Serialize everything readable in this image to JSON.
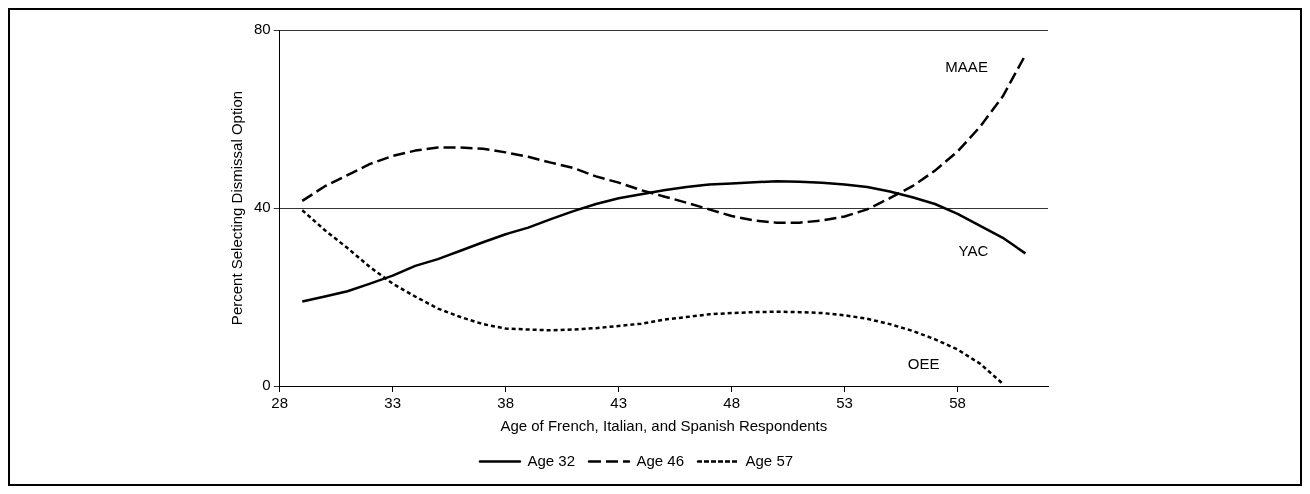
{
  "chart_data": {
    "type": "line",
    "xlabel": "Age of French, Italian, and Spanish Respondents",
    "ylabel": "Percent Selecting Dismissal Option",
    "x": [
      29,
      30,
      31,
      32,
      33,
      34,
      35,
      36,
      37,
      38,
      39,
      40,
      41,
      42,
      43,
      44,
      45,
      46,
      47,
      48,
      49,
      50,
      51,
      52,
      53,
      54,
      55,
      56,
      57,
      58,
      59,
      60,
      61
    ],
    "series": [
      {
        "name": "Age 32",
        "color": "#000000",
        "line_style": "solid",
        "values": [
          19,
          20.1,
          21.3,
          23,
          24.8,
          27,
          28.5,
          30.4,
          32.3,
          34.1,
          35.6,
          37.5,
          39.3,
          40.9,
          42.2,
          43.1,
          44,
          44.7,
          45.3,
          45.5,
          45.8,
          46,
          45.9,
          45.7,
          45.3,
          44.7,
          43.7,
          42.4,
          40.9,
          38.7,
          36,
          33.3,
          29.8
        ]
      },
      {
        "name": "Age 46",
        "color": "#000000",
        "line_style": "dashed",
        "values": [
          41.6,
          44.9,
          47.4,
          49.9,
          51.7,
          52.9,
          53.6,
          53.6,
          53.3,
          52.5,
          51.5,
          50.2,
          49,
          47.1,
          45.7,
          44,
          42.6,
          41.2,
          39.7,
          38.2,
          37.2,
          36.7,
          36.7,
          37.2,
          38.1,
          39.7,
          42.2,
          44.9,
          48.4,
          52.7,
          58.3,
          65.1,
          74.4
        ]
      },
      {
        "name": "Age 57",
        "color": "#000000",
        "line_style": "dotted",
        "values": [
          39.5,
          35,
          31,
          26.7,
          23,
          20.1,
          17.4,
          15.5,
          13.9,
          12.9,
          12.7,
          12.5,
          12.7,
          13,
          13.5,
          14,
          14.9,
          15.5,
          16.1,
          16.4,
          16.6,
          16.7,
          16.6,
          16.4,
          15.9,
          15.1,
          13.9,
          12.4,
          10.5,
          8.2,
          5,
          0.5,
          null
        ]
      }
    ],
    "xlim": [
      28,
      62
    ],
    "xticks": [
      28,
      33,
      38,
      43,
      48,
      53,
      58
    ],
    "ylim": [
      0,
      80
    ],
    "yticks": [
      0,
      40,
      80
    ],
    "grid": "y",
    "legend": "bottom",
    "annotations": [
      {
        "text": "MAAE",
        "x": 60.7,
        "y": 71.6
      },
      {
        "text": "YAC",
        "x": 58.7,
        "y": 36.8
      },
      {
        "text": "OEE",
        "x": 56.5,
        "y": 11.5
      }
    ]
  }
}
